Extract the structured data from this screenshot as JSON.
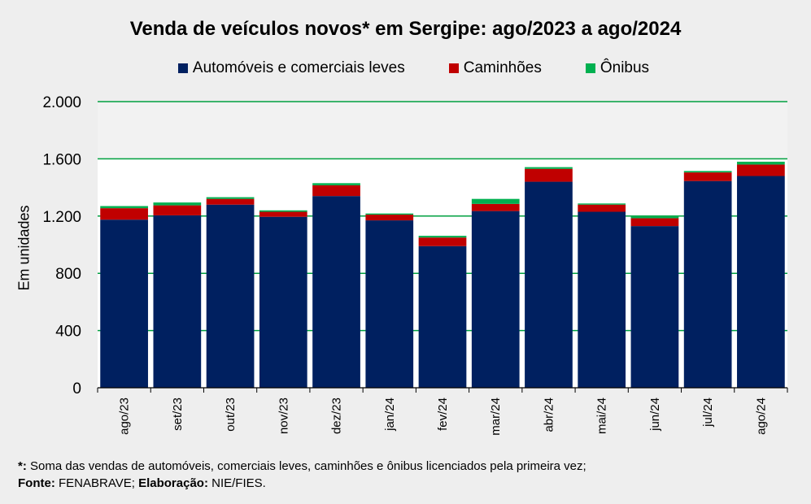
{
  "chart_data": {
    "type": "bar",
    "stacked": true,
    "title": "Venda de veículos novos* em Sergipe: ago/2023 a ago/2024",
    "ylabel": "Em unidades",
    "xlabel": "",
    "ylim": [
      0,
      2000
    ],
    "yticks": [
      0,
      400,
      800,
      1200,
      1600,
      2000
    ],
    "ytick_labels": [
      "0",
      "400",
      "800",
      "1.200",
      "1.600",
      "2.000"
    ],
    "categories": [
      "ago/23",
      "set/23",
      "out/23",
      "nov/23",
      "dez/23",
      "jan/24",
      "fev/24",
      "mar/24",
      "abr/24",
      "mai/24",
      "jun/24",
      "jul/24",
      "ago/24"
    ],
    "series": [
      {
        "name": "Automóveis e comerciais leves",
        "color": "#002060",
        "values": [
          1175,
          1205,
          1280,
          1195,
          1340,
          1170,
          990,
          1235,
          1440,
          1230,
          1130,
          1445,
          1480
        ]
      },
      {
        "name": "Caminhões",
        "color": "#c00000",
        "values": [
          80,
          70,
          40,
          35,
          75,
          40,
          60,
          50,
          90,
          50,
          55,
          60,
          80
        ]
      },
      {
        "name": "Ônibus",
        "color": "#00b050",
        "values": [
          15,
          20,
          12,
          10,
          15,
          8,
          12,
          35,
          12,
          8,
          15,
          10,
          20
        ]
      }
    ],
    "grid": true,
    "legend_position": "top"
  },
  "footnote": {
    "line1_label": "*:",
    "line1_text": " Soma das vendas de automóveis, comerciais leves, caminhões e ônibus licenciados pela primeira vez;",
    "fonte_label": "Fonte:",
    "fonte_text": " FENABRAVE; ",
    "elab_label": "Elaboração:",
    "elab_text": " NIE/FIES."
  }
}
